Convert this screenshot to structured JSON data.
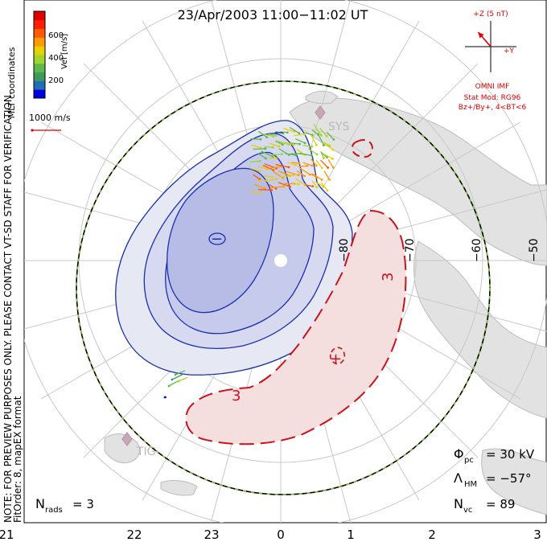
{
  "title": "23/Apr/2003 11:00−11:02 UT",
  "colorbar": {
    "label": "Vel [m/s]",
    "ticks": [
      "600",
      "400",
      "200"
    ],
    "colors": [
      "#0000e0",
      "#1f6fb4",
      "#3d9a5c",
      "#5fb84a",
      "#9fd62c",
      "#e8d000",
      "#ff9a00",
      "#ff5a00",
      "#ff2000",
      "#e00000"
    ]
  },
  "coord_label": "MLT coordinates",
  "ref_vector_label": "1000 m/s",
  "imf": {
    "z_label": "+Z (5 nT)",
    "y_label": "+Y",
    "source": "OMNI IMF",
    "stat_mod": "Stat Mod: RG96",
    "bz_by": "Bz+/By+, 4<BT<6",
    "vector_angle_deg": 53
  },
  "note_line1": "NOTE: FOR PREVIEW PURPOSES ONLY. PLEASE CONTACT VT-SD STAFF FOR VERIFICATION.",
  "note_line2": "FitOrder: 8, mapEX format",
  "radar_labels": [
    "SYS",
    "TIG"
  ],
  "lat_labels": [
    "−80",
    "−70",
    "−60",
    "−50"
  ],
  "contour_labels": {
    "positive_sign": "+",
    "negative_sign": "−",
    "three_a": "3",
    "three_b": "3"
  },
  "stats": {
    "phi_sym": "Φ",
    "phi_sub": "pc",
    "phi_val": "= 30 kV",
    "lam_sym": "Λ",
    "lam_sub": "HM",
    "lam_val": "= −57°",
    "nvc_sym": "N",
    "nvc_sub": "vc",
    "nvc_val": "= 89",
    "nrads_sym": "N",
    "nrads_sub": "rads",
    "nrads_val": "= 3"
  },
  "mlt_axis": [
    "21",
    "22",
    "23",
    "0",
    "1",
    "2",
    "3"
  ],
  "colors": {
    "negative_cell": "#1a2fb0",
    "positive_cell": "#c8141e",
    "boundary_green": "#7ec83a",
    "grid": "#c8c8c8",
    "land": "#dedede"
  }
}
